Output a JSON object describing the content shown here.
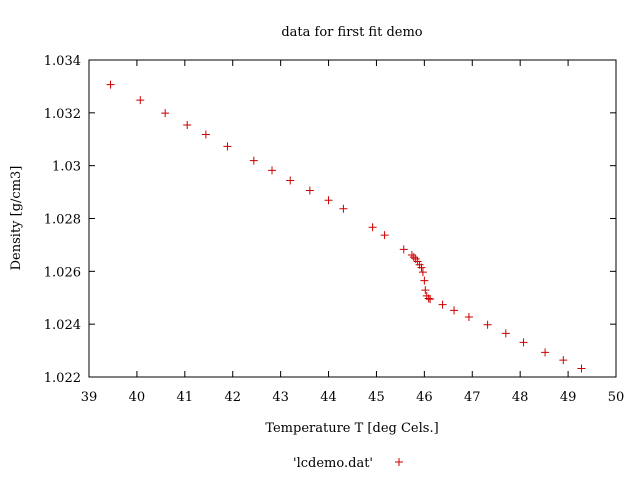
{
  "chart_data": {
    "type": "scatter",
    "title": "data for first fit demo",
    "xlabel": "Temperature T  [deg Cels.]",
    "ylabel": "Density [g/cm3]",
    "xlim": [
      39,
      50
    ],
    "ylim": [
      1.022,
      1.034
    ],
    "xticks": [
      "39",
      "40",
      "41",
      "42",
      "43",
      "44",
      "45",
      "46",
      "47",
      "48",
      "49",
      "50"
    ],
    "yticks": [
      "1.022",
      "1.024",
      "1.026",
      "1.028",
      "1.03",
      "1.032",
      "1.034"
    ],
    "grid": false,
    "legend_position": "bottom",
    "marker_color": "#cc0000",
    "series": [
      {
        "name": "'lcdemo.dat'",
        "points": [
          [
            39.45,
            1.03307
          ],
          [
            40.07,
            1.03248
          ],
          [
            40.59,
            1.03199
          ],
          [
            41.05,
            1.03154
          ],
          [
            41.44,
            1.03118
          ],
          [
            41.89,
            1.03073
          ],
          [
            42.44,
            1.03019
          ],
          [
            42.82,
            1.02982
          ],
          [
            43.2,
            1.02944
          ],
          [
            43.61,
            1.02906
          ],
          [
            44.0,
            1.02869
          ],
          [
            44.31,
            1.02837
          ],
          [
            44.92,
            1.02767
          ],
          [
            45.17,
            1.02737
          ],
          [
            45.57,
            1.02683
          ],
          [
            45.74,
            1.02662
          ],
          [
            45.78,
            1.02654
          ],
          [
            45.82,
            1.02647
          ],
          [
            45.86,
            1.02637
          ],
          [
            45.9,
            1.02625
          ],
          [
            45.94,
            1.02614
          ],
          [
            45.97,
            1.02597
          ],
          [
            46.0,
            1.02565
          ],
          [
            46.02,
            1.02529
          ],
          [
            46.05,
            1.02507
          ],
          [
            46.09,
            1.02497
          ],
          [
            46.12,
            1.02495
          ],
          [
            46.38,
            1.02474
          ],
          [
            46.62,
            1.02452
          ],
          [
            46.93,
            1.02427
          ],
          [
            47.32,
            1.02398
          ],
          [
            47.7,
            1.02365
          ],
          [
            48.07,
            1.02331
          ],
          [
            48.52,
            1.02293
          ],
          [
            48.9,
            1.02264
          ],
          [
            49.28,
            1.02232
          ]
        ]
      }
    ]
  }
}
